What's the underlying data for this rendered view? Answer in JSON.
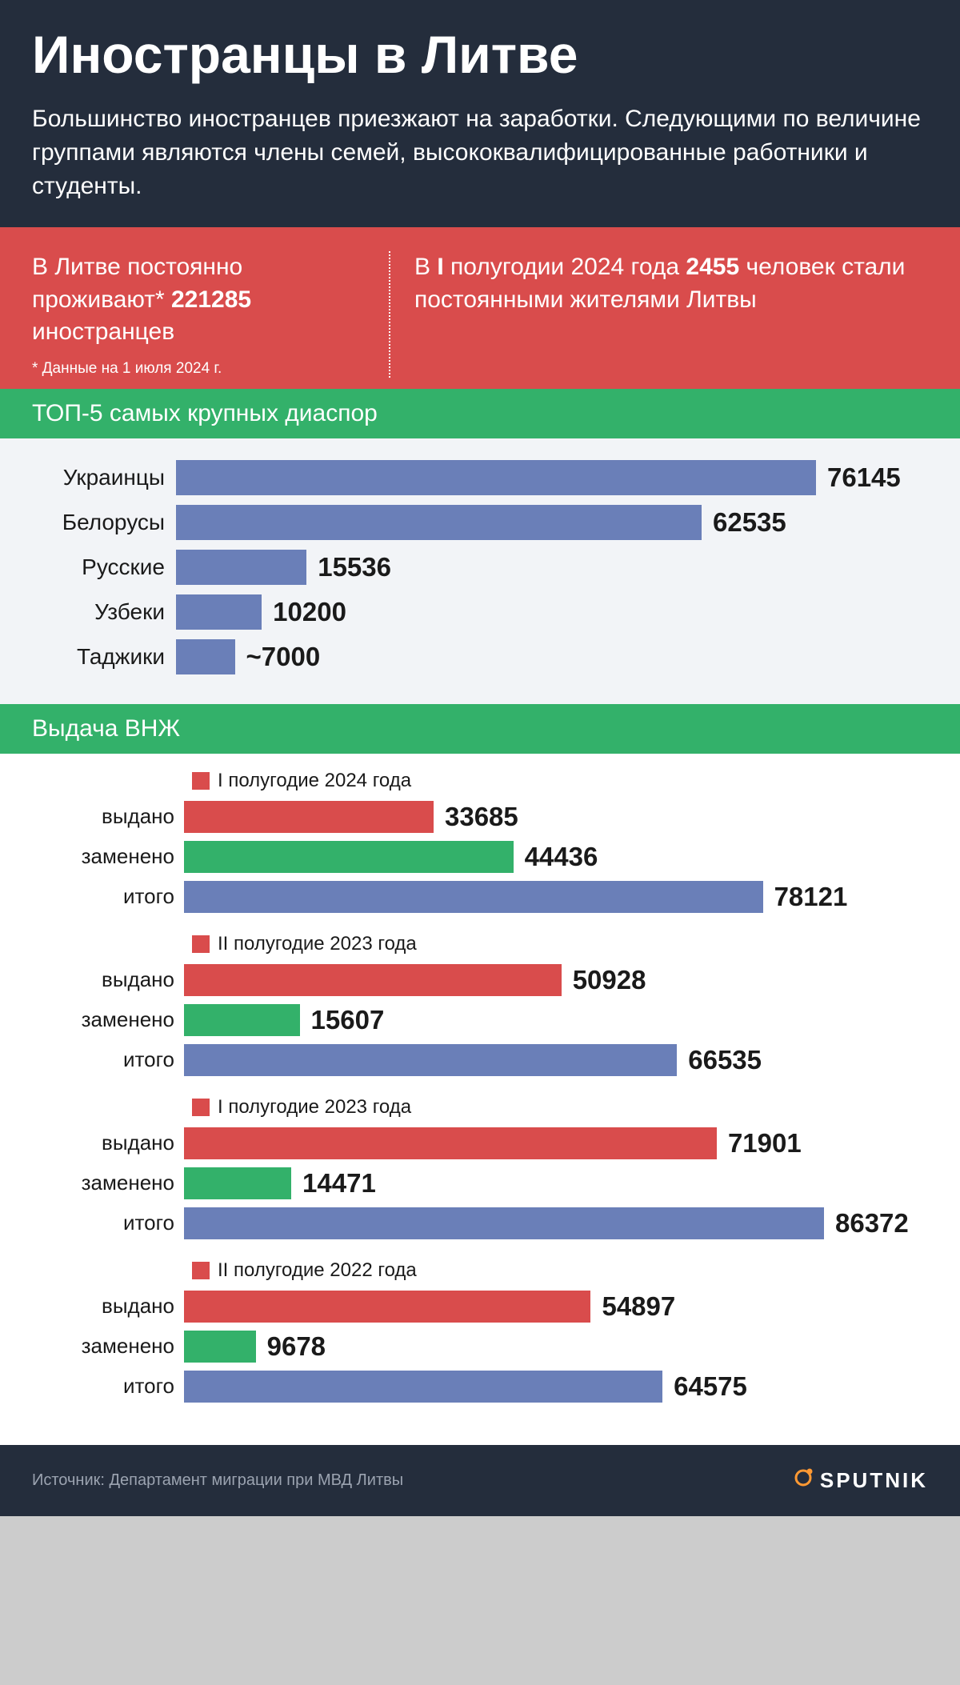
{
  "header": {
    "title": "Иностранцы в Литве",
    "subtitle": "Большинство иностранцев приезжают на заработки. Следующими по величине группами являются члены семей, высококвалифицированные работники и студенты."
  },
  "redPanel": {
    "left_prefix": "В Литве постоянно проживают* ",
    "left_value": "221285",
    "left_suffix": " иностранцев",
    "footnote": "* Данные на 1 июля 2024 г.",
    "right_prefix1": "В ",
    "right_bold1": "I",
    "right_mid": " полугодии 2024 года ",
    "right_bold2": "2455",
    "right_suffix": " человек стали постоянными жителями Литвы"
  },
  "diaspora": {
    "title": "ТОП-5 самых крупных диаспор",
    "bar_color": "#6a7fb8",
    "background_color": "#f2f4f7",
    "max_value": 76145,
    "bar_area_width": 800,
    "items": [
      {
        "label": "Украинцы",
        "value": 76145,
        "display": "76145"
      },
      {
        "label": "Белорусы",
        "value": 62535,
        "display": "62535"
      },
      {
        "label": "Русские",
        "value": 15536,
        "display": "15536"
      },
      {
        "label": "Узбеки",
        "value": 10200,
        "display": "10200"
      },
      {
        "label": "Таджики",
        "value": 7000,
        "display": "~7000"
      }
    ]
  },
  "permits": {
    "title": "Выдача ВНЖ",
    "background_color": "#ffffff",
    "max_value": 86372,
    "bar_area_width": 800,
    "row_labels": {
      "issued": "выдано",
      "replaced": "заменено",
      "total": "итого"
    },
    "colors": {
      "issued": "#d94c4c",
      "replaced": "#33b16a",
      "total": "#6a7fb8",
      "marker": "#d94c4c"
    },
    "periods": [
      {
        "title": "I полугодие 2024 года",
        "issued": 33685,
        "replaced": 44436,
        "total": 78121
      },
      {
        "title": "II полугодие 2023 года",
        "issued": 50928,
        "replaced": 15607,
        "total": 66535
      },
      {
        "title": "I полугодие 2023 года",
        "issued": 71901,
        "replaced": 14471,
        "total": 86372
      },
      {
        "title": "II полугодие 2022 года",
        "issued": 54897,
        "replaced": 9678,
        "total": 64575
      }
    ]
  },
  "footer": {
    "source": "Источник: Департамент миграции при МВД Литвы",
    "logo": "SPUTNIK"
  },
  "colors": {
    "dark_bg": "#242d3c",
    "red": "#d94c4c",
    "green": "#33b16a",
    "blue": "#6a7fb8",
    "light_bg": "#f2f4f7",
    "white": "#ffffff",
    "footer_text": "#9ba3b0"
  }
}
